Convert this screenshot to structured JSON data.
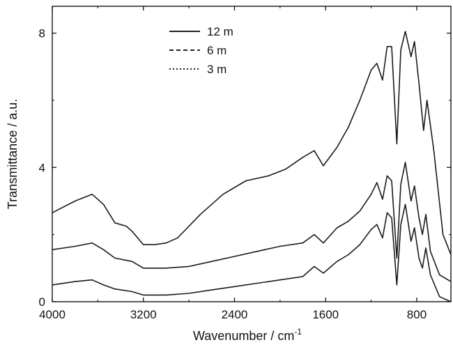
{
  "chart_data": {
    "type": "line",
    "title": "",
    "xlabel": "Wavenumber / cm",
    "xlabel_superscript": "-1",
    "ylabel": "Transmittance / a.u.",
    "xlim": [
      4000,
      500
    ],
    "ylim": [
      0,
      8.8
    ],
    "x_reversed": true,
    "x_ticks": [
      4000,
      3200,
      2400,
      1600,
      800
    ],
    "x_tick_labels": [
      "4000",
      "3200",
      "2400",
      "1600",
      "800"
    ],
    "y_ticks": [
      0,
      4,
      8
    ],
    "y_tick_labels": [
      "0",
      "4",
      "8"
    ],
    "grid": false,
    "legend_position": "top-left",
    "series": [
      {
        "name": "12 m",
        "line_style": "solid",
        "points": [
          [
            4000,
            2.65
          ],
          [
            3800,
            3.0
          ],
          [
            3650,
            3.2
          ],
          [
            3550,
            2.9
          ],
          [
            3450,
            2.35
          ],
          [
            3350,
            2.25
          ],
          [
            3300,
            2.1
          ],
          [
            3200,
            1.7
          ],
          [
            3100,
            1.7
          ],
          [
            3000,
            1.75
          ],
          [
            2900,
            1.9
          ],
          [
            2700,
            2.6
          ],
          [
            2500,
            3.2
          ],
          [
            2300,
            3.6
          ],
          [
            2100,
            3.75
          ],
          [
            1950,
            3.95
          ],
          [
            1800,
            4.3
          ],
          [
            1700,
            4.5
          ],
          [
            1620,
            4.05
          ],
          [
            1500,
            4.6
          ],
          [
            1400,
            5.2
          ],
          [
            1300,
            6.0
          ],
          [
            1200,
            6.9
          ],
          [
            1150,
            7.1
          ],
          [
            1100,
            6.6
          ],
          [
            1060,
            7.6
          ],
          [
            1020,
            7.6
          ],
          [
            975,
            4.7
          ],
          [
            940,
            7.5
          ],
          [
            900,
            8.05
          ],
          [
            850,
            7.3
          ],
          [
            820,
            7.75
          ],
          [
            780,
            6.5
          ],
          [
            740,
            5.1
          ],
          [
            710,
            6.0
          ],
          [
            650,
            4.5
          ],
          [
            570,
            2.0
          ],
          [
            500,
            1.4
          ]
        ]
      },
      {
        "name": "6 m",
        "line_style": "dashed",
        "points": [
          [
            4000,
            1.55
          ],
          [
            3800,
            1.65
          ],
          [
            3650,
            1.75
          ],
          [
            3550,
            1.55
          ],
          [
            3450,
            1.3
          ],
          [
            3300,
            1.2
          ],
          [
            3200,
            1.0
          ],
          [
            3000,
            1.0
          ],
          [
            2800,
            1.05
          ],
          [
            2600,
            1.2
          ],
          [
            2400,
            1.35
          ],
          [
            2200,
            1.5
          ],
          [
            2000,
            1.65
          ],
          [
            1800,
            1.75
          ],
          [
            1700,
            2.0
          ],
          [
            1620,
            1.75
          ],
          [
            1500,
            2.2
          ],
          [
            1400,
            2.4
          ],
          [
            1300,
            2.7
          ],
          [
            1200,
            3.2
          ],
          [
            1150,
            3.55
          ],
          [
            1100,
            3.05
          ],
          [
            1060,
            3.75
          ],
          [
            1020,
            3.6
          ],
          [
            975,
            1.3
          ],
          [
            940,
            3.5
          ],
          [
            900,
            4.15
          ],
          [
            850,
            3.0
          ],
          [
            820,
            3.45
          ],
          [
            780,
            2.5
          ],
          [
            750,
            2.0
          ],
          [
            720,
            2.6
          ],
          [
            680,
            1.5
          ],
          [
            600,
            0.8
          ],
          [
            500,
            0.6
          ]
        ]
      },
      {
        "name": "3 m",
        "line_style": "dotted",
        "points": [
          [
            4000,
            0.5
          ],
          [
            3800,
            0.6
          ],
          [
            3650,
            0.65
          ],
          [
            3550,
            0.5
          ],
          [
            3450,
            0.38
          ],
          [
            3300,
            0.3
          ],
          [
            3200,
            0.2
          ],
          [
            3000,
            0.2
          ],
          [
            2800,
            0.25
          ],
          [
            2600,
            0.35
          ],
          [
            2400,
            0.45
          ],
          [
            2200,
            0.55
          ],
          [
            2000,
            0.65
          ],
          [
            1800,
            0.75
          ],
          [
            1700,
            1.05
          ],
          [
            1620,
            0.85
          ],
          [
            1500,
            1.2
          ],
          [
            1400,
            1.4
          ],
          [
            1300,
            1.7
          ],
          [
            1200,
            2.15
          ],
          [
            1150,
            2.3
          ],
          [
            1100,
            1.9
          ],
          [
            1060,
            2.65
          ],
          [
            1020,
            2.5
          ],
          [
            975,
            0.5
          ],
          [
            940,
            2.3
          ],
          [
            900,
            2.9
          ],
          [
            850,
            1.8
          ],
          [
            820,
            2.2
          ],
          [
            780,
            1.3
          ],
          [
            750,
            1.0
          ],
          [
            720,
            1.6
          ],
          [
            680,
            0.8
          ],
          [
            600,
            0.15
          ],
          [
            500,
            0.0
          ]
        ]
      }
    ]
  }
}
